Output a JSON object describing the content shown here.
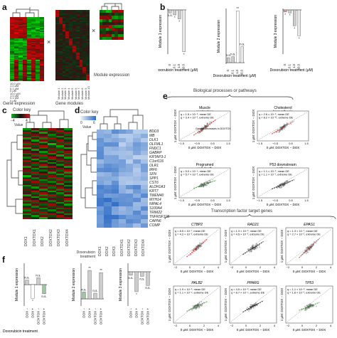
{
  "panel_labels": {
    "a": "a",
    "b": "b",
    "c": "c",
    "d": "d",
    "e": "e",
    "f": "f"
  },
  "panel_a": {
    "caption_gene_expression": "Gene expression",
    "caption_gene_modules": "Gene modules",
    "caption_module_expression": "Module expression",
    "times_symbol": "×",
    "conc_labels": [
      "10.0 μM",
      "1.0 μM",
      "0.1 μM",
      "0 μM",
      "10.0 μM",
      "1.0 μM",
      "0.1 μM",
      "0 μM"
    ],
    "module_labels": [
      "Module 1",
      "Module 2",
      "Module 3",
      "Module 4",
      "Module 5",
      "Module 6",
      "Module 7",
      "Module 8",
      "Module 9",
      "Module 10"
    ]
  },
  "panel_b": {
    "ylabels": [
      "Module 1 expression",
      "Module 2 expression",
      "Module 3 expression"
    ],
    "xlabel": "Doxorubicin treatment (μM)",
    "categories": [
      "0",
      "0.1",
      "1.0",
      "10.0"
    ],
    "sig_marks": [
      [
        "n.s.",
        "*",
        "*",
        "*"
      ],
      [
        "n.s.",
        "n.s.",
        "**",
        "n.s."
      ],
      [
        "*",
        "*",
        "*",
        "*"
      ]
    ]
  },
  "panel_c": {
    "color_key": "Color key",
    "value_label": "Value",
    "key_ticks": [
      "−4",
      "4"
    ],
    "columns": [
      "DOX1",
      "DOXTOX1",
      "DOX2",
      "DOXTOX2",
      "DOXTOX3",
      "DOXTOX4"
    ]
  },
  "panel_d": {
    "color_key": "Color key",
    "value_label": "Value",
    "key_ticks": [
      "0",
      "6"
    ],
    "genes": [
      "BDD3",
      "MB",
      "DLK1",
      "OLFML1",
      "FNDC1",
      "GABRP",
      "KRTAP3-1",
      "C1orf116",
      "OLR1",
      "IRF6",
      "SFN",
      "SPP1",
      "CST6",
      "ALDH1A3",
      "KRT7",
      "TMEM40",
      "MYH14",
      "NIPAL4",
      "S100A4",
      "TRIM22",
      "TNFRSF11B",
      "CAPN6",
      "COMP"
    ],
    "columns": [
      "DOX1",
      "DOX2",
      "DOX3",
      "DOXTOX1",
      "DOXTOX2",
      "DOXTOX3",
      "DOXTOX4"
    ],
    "row_label": "Doxorubicin treatment"
  },
  "panel_e": {
    "header": "Biological processes or pathways",
    "yaxis": "1 μM: DOXTOX − DOX",
    "xaxis": "0 μM: DOXTOX − DOX",
    "plots": [
      {
        "title": "Muscle contraction",
        "q1": "q = 1.5 × 10⁻⁶, mean DE",
        "q2": "q = 3.4 × 10⁻², extreme DE",
        "note": "Greater decreases in DOXTOX"
      },
      {
        "title": "Cholesterol biosynthesis",
        "q1": "q = 2.6 × 10⁻⁶, mean DE",
        "q2": "q = 8.2 × 10⁻¹², extreme DE",
        "note": ""
      },
      {
        "title": "Programed cell death",
        "q1": "q = 5.0 × 10⁻⁴, mean DE",
        "q2": "q = 5.7 × 10⁻³, extreme DE",
        "note": ""
      },
      {
        "title": "P53 downstream pathway",
        "q1": "q = 1.1 × 10⁻⁶, mean DE",
        "q2": "q = 1.1 × 10⁻¹, extreme DE",
        "note": ""
      }
    ],
    "ticks": [
      "−1.5",
      "−0.5",
      "0.5",
      "1.5"
    ]
  },
  "panel_tf": {
    "header": "Transcription factor target genes",
    "yaxis": "1 μM: DOXTOX − DOX",
    "xaxis": "0 μM: DOXTOX − DOX",
    "plots": [
      {
        "gene": "CTBP2",
        "q1": "q = 8.5 × 10⁻⁷, mean DE",
        "q2": "q = 4.2 × 10⁻², extreme DE"
      },
      {
        "gene": "RAD21",
        "q1": "q = 1.3 × 10⁻⁵, mean DE",
        "q2": "q = 4.5 × 10⁻³, extreme DE"
      },
      {
        "gene": "EPAS1",
        "q1": "q = 1.3 × 10⁻⁷, mean DE",
        "q2": "q = 2.7 × 10⁻², extreme DE"
      },
      {
        "gene": "PALB2",
        "q1": "q = 1.9 × 10⁻⁶, mean DE",
        "q2": "q = 1.1 × 10⁻⁴, extreme DE"
      },
      {
        "gene": "PPARG",
        "q1": "q = 4.5 × 10⁻⁶, mean DE",
        "q2": "q = 8.7 × 10⁻⁴, extreme DE"
      },
      {
        "gene": "TP53",
        "q1": "q = 1.1 × 10⁻⁶, mean DE",
        "q2": "q = 1.6 × 10⁻³, extreme DE"
      }
    ],
    "ticks": [
      "−2",
      "0",
      "2",
      "4"
    ]
  },
  "panel_f": {
    "ylabels": [
      "Module 1 expression",
      "Module 2 expression",
      "Module 3 expression"
    ],
    "xlabel": "Doxorubicin treatment",
    "categories": [
      "DOX −",
      "DOX +",
      "DOXTOX −",
      "DOXTOX +"
    ],
    "sig_marks": [
      [
        "n.s.",
        "*",
        "n.s.",
        "n.s."
      ],
      [
        "n.s.",
        "**",
        "n.s.",
        "**"
      ],
      [
        "n.s.",
        "*",
        "n.s.",
        "n.s."
      ]
    ]
  },
  "colors": {
    "red": "#d62728",
    "green": "#2ca02c",
    "black": "#111111",
    "blue": "#3a78c8",
    "pale": "#dde8f6"
  }
}
